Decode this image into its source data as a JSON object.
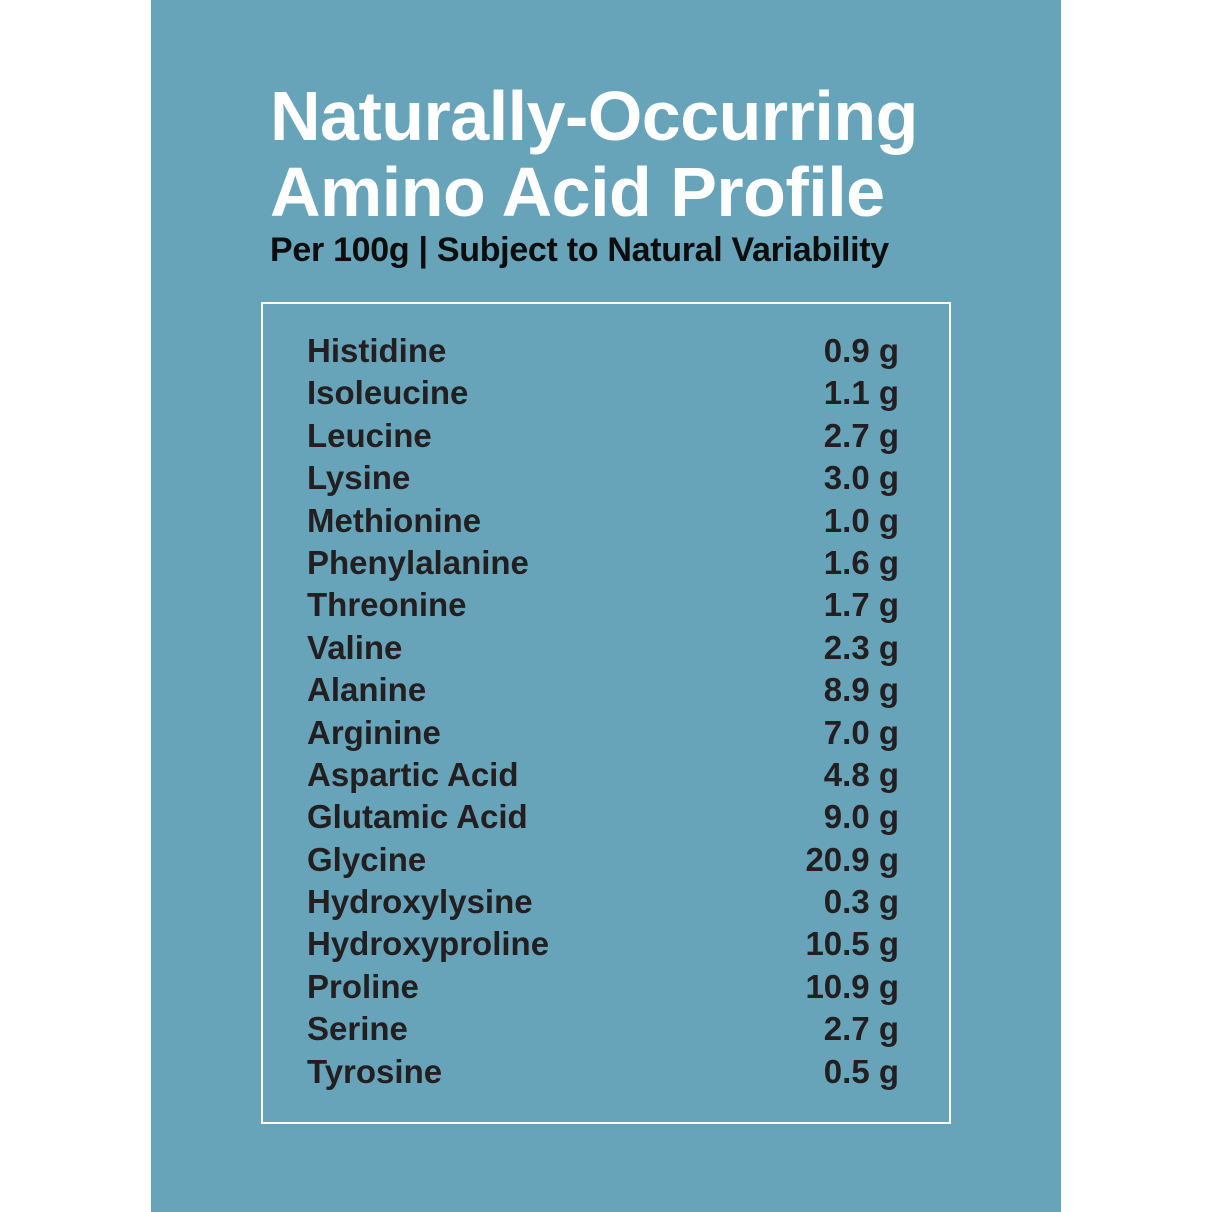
{
  "colors": {
    "background": "#67a3b9",
    "title": "#ffffff",
    "text": "#231f20"
  },
  "title_lines": [
    "Naturally-Occurring",
    "Amino Acid Profile"
  ],
  "subtitle": "Per 100g | Subject to Natural Variability",
  "rows": [
    {
      "name": "Histidine",
      "value": "0.9 g"
    },
    {
      "name": "Isoleucine",
      "value": "1.1 g"
    },
    {
      "name": "Leucine",
      "value": "2.7 g"
    },
    {
      "name": "Lysine",
      "value": "3.0 g"
    },
    {
      "name": "Methionine",
      "value": "1.0 g"
    },
    {
      "name": "Phenylalanine",
      "value": "1.6 g"
    },
    {
      "name": "Threonine",
      "value": "1.7 g"
    },
    {
      "name": "Valine",
      "value": "2.3 g"
    },
    {
      "name": "Alanine",
      "value": "8.9 g"
    },
    {
      "name": "Arginine",
      "value": "7.0 g"
    },
    {
      "name": "Aspartic Acid",
      "value": "4.8 g"
    },
    {
      "name": "Glutamic Acid",
      "value": "9.0 g"
    },
    {
      "name": "Glycine",
      "value": "20.9 g"
    },
    {
      "name": "Hydroxylysine",
      "value": "0.3 g"
    },
    {
      "name": "Hydroxyproline",
      "value": "10.5 g"
    },
    {
      "name": "Proline",
      "value": "10.9 g"
    },
    {
      "name": "Serine",
      "value": "2.7 g"
    },
    {
      "name": "Tyrosine",
      "value": "0.5 g"
    }
  ]
}
